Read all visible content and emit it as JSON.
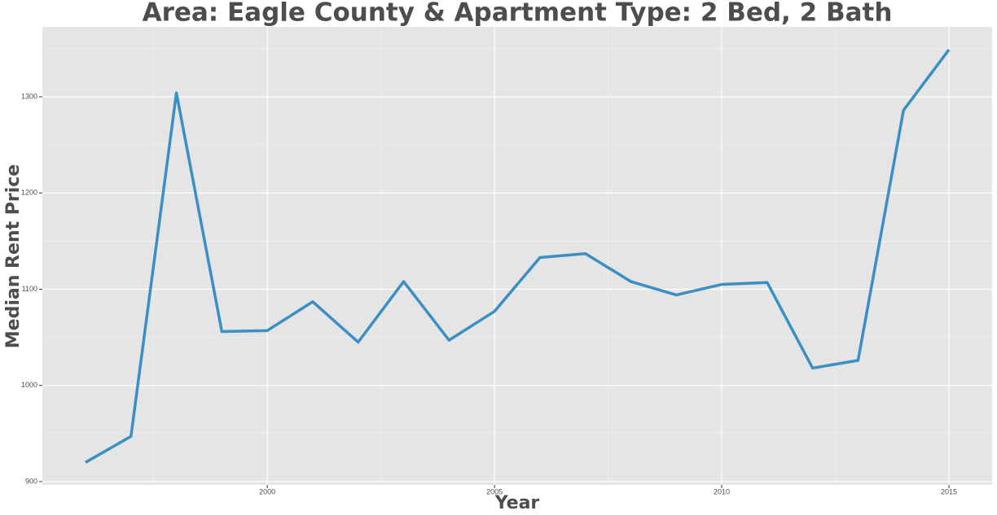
{
  "chart_data": {
    "type": "line",
    "title": "Area: Eagle County & Apartment Type: 2 Bed, 2 Bath",
    "x_label": "Year",
    "y_label": "Median Rent Price",
    "x": [
      1996,
      1997,
      1998,
      1999,
      2000,
      2001,
      2002,
      2003,
      2004,
      2005,
      2006,
      2007,
      2008,
      2009,
      2010,
      2011,
      2012,
      2013,
      2014,
      2015
    ],
    "series": [
      {
        "name": "Median Rent Price",
        "color": "#3a8fc4",
        "values": [
          920,
          947,
          1304,
          1056,
          1057,
          1087,
          1045,
          1108,
          1047,
          1077,
          1133,
          1137,
          1108,
          1094,
          1105,
          1107,
          1018,
          1026,
          1286,
          1349
        ]
      }
    ],
    "xlim": [
      1995.05,
      2015.95
    ],
    "xticks": [
      2000,
      2005,
      2010,
      2015
    ],
    "ylim": [
      896.6,
      1372.7
    ],
    "yticks": [
      900,
      1000,
      1100,
      1200,
      1300
    ],
    "grid": true
  }
}
